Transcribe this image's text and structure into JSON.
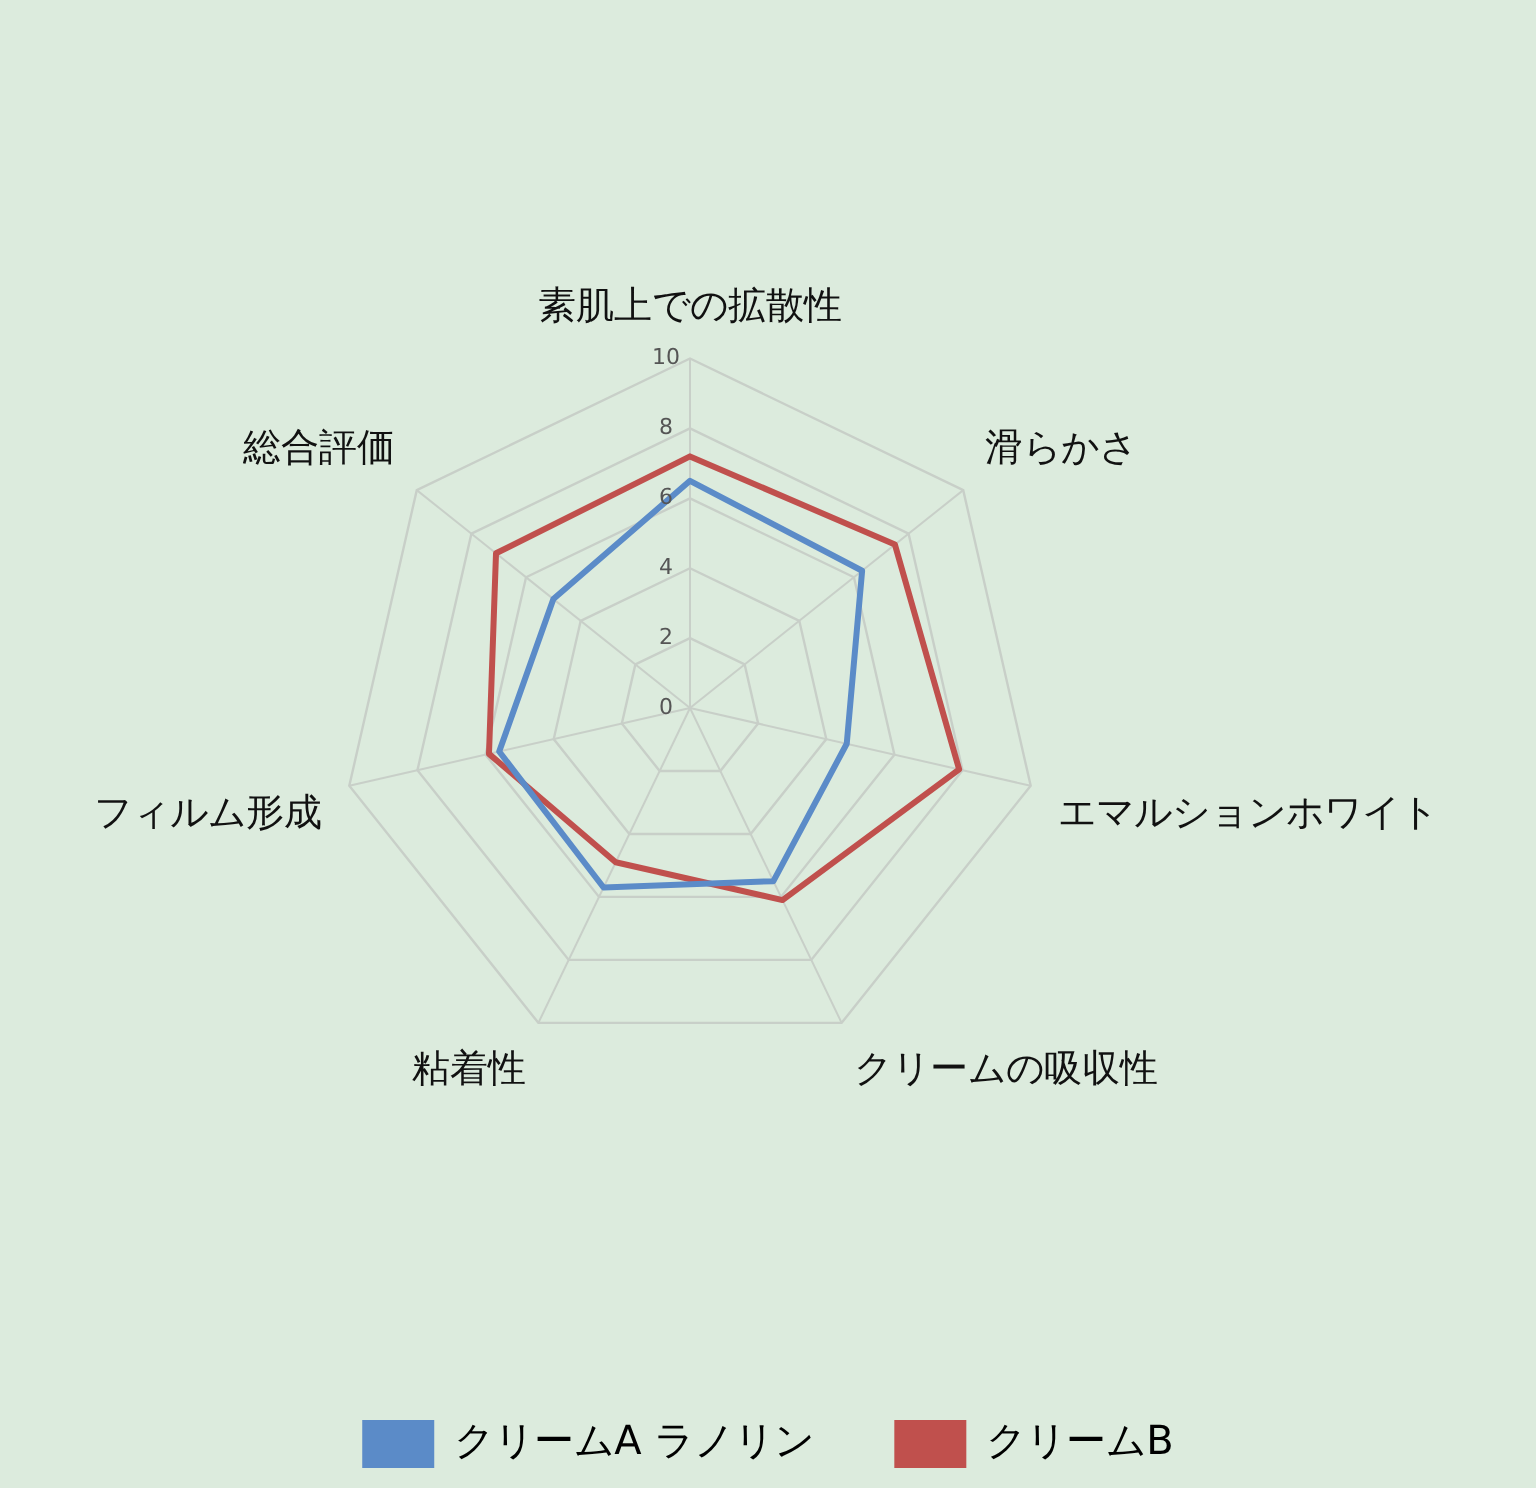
{
  "chart_data": {
    "type": "radar",
    "categories": [
      "素肌上での拡散性",
      "滑らかさ",
      "エマルションホワイト",
      "クリームの吸収性",
      "粘着性",
      "フィルム形成",
      "総合評価"
    ],
    "series": [
      {
        "name": "クリームA ラノリン",
        "color": "#5b8bc8",
        "values": [
          6.5,
          6.3,
          4.6,
          5.5,
          5.7,
          5.6,
          5.0
        ]
      },
      {
        "name": "クリームB",
        "color": "#c0504d",
        "values": [
          7.2,
          7.5,
          7.9,
          6.1,
          4.9,
          5.9,
          7.1
        ]
      }
    ],
    "ylim": [
      0,
      10
    ],
    "yticks": [
      0,
      2,
      4,
      6,
      8,
      10
    ],
    "grid": true,
    "legend": "bottom",
    "marker": "none",
    "line_style": "solid"
  }
}
